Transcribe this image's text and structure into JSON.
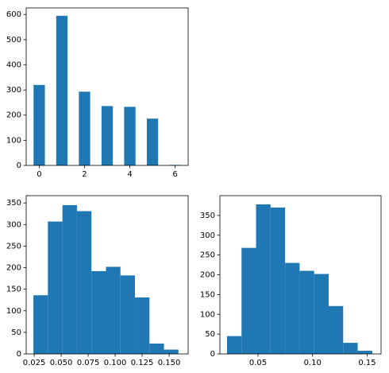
{
  "chart_data": [
    {
      "type": "bar",
      "color": "#1f77b4",
      "x": [
        0,
        1,
        2,
        3,
        4,
        5,
        6
      ],
      "values": [
        320,
        595,
        293,
        236,
        233,
        186,
        2
      ],
      "xlim": [
        -0.575,
        6.575
      ],
      "xticks": [
        0,
        2,
        4,
        6
      ],
      "ylim": [
        0,
        626
      ],
      "yticks": [
        0,
        100,
        200,
        300,
        400,
        500,
        600
      ]
    },
    {
      "type": "histogram",
      "color": "#1f77b4",
      "bins": [
        0.0243,
        0.0377,
        0.0512,
        0.0646,
        0.078,
        0.0915,
        0.1049,
        0.1183,
        0.1318,
        0.1452,
        0.1586
      ],
      "values": [
        136,
        307,
        345,
        331,
        192,
        202,
        182,
        131,
        24,
        10
      ],
      "xlim": [
        0.0176,
        0.1676
      ],
      "xticks": [
        0.025,
        {
          "value": 0.05,
          "label": "0.050"
        },
        0.075,
        {
          "value": 0.1,
          "label": "0.100"
        },
        0.125,
        {
          "value": 0.15,
          "label": "0.150"
        }
      ],
      "ylim": [
        0,
        367
      ],
      "yticks": [
        0,
        50,
        100,
        150,
        200,
        250,
        300,
        350
      ]
    },
    {
      "type": "histogram",
      "color": "#1f77b4",
      "bins": [
        0.0216,
        0.0349,
        0.0482,
        0.0615,
        0.0748,
        0.0881,
        0.1014,
        0.1147,
        0.128,
        0.1413,
        0.1546
      ],
      "values": [
        45,
        268,
        378,
        370,
        230,
        210,
        202,
        121,
        28,
        8
      ],
      "xlim": [
        0.0151,
        0.1627
      ],
      "xticks": [
        0.05,
        {
          "value": 0.1,
          "label": "0.10"
        },
        0.15
      ],
      "ylim": [
        0,
        400
      ],
      "yticks": [
        0,
        50,
        100,
        150,
        200,
        250,
        300,
        350
      ]
    }
  ]
}
